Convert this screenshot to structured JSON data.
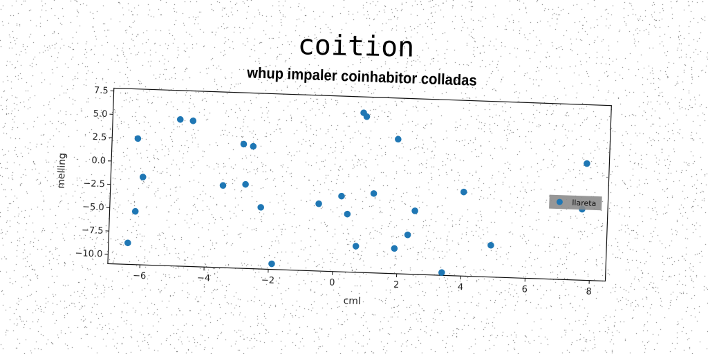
{
  "figure": {
    "suptitle": "coition"
  },
  "chart_data": {
    "type": "scatter",
    "title": "whup impaler coinhabitor colladas",
    "xlabel": "cml",
    "ylabel": "melling",
    "xlim": [
      -7,
      8.5
    ],
    "ylim": [
      -11,
      7.8
    ],
    "xticks": [
      -6,
      -4,
      -2,
      0,
      2,
      4,
      6,
      8
    ],
    "xtick_labels": [
      "−6",
      "−4",
      "−2",
      "0",
      "2",
      "4",
      "6",
      "8"
    ],
    "yticks": [
      -10,
      -7.5,
      -5,
      -2.5,
      0,
      2.5,
      5,
      7.5
    ],
    "ytick_labels": [
      "−10.0",
      "−7.5",
      "−5.0",
      "−2.5",
      "0.0",
      "2.5",
      "5.0",
      "7.5"
    ],
    "grid": false,
    "legend_position": "right",
    "colors": {
      "series": "#1f77b4",
      "legend_bg": "#8c8c8c"
    },
    "series": [
      {
        "name": "llareta",
        "x": [
          -6.2,
          -6.0,
          -6.2,
          -6.4,
          -4.9,
          -4.5,
          -3.5,
          -2.9,
          -2.8,
          -2.6,
          -2.3,
          -1.9,
          -0.5,
          0.2,
          0.4,
          0.7,
          0.8,
          0.9,
          1.2,
          1.9,
          1.9,
          2.3,
          2.5,
          3.4,
          4.0,
          4.9,
          7.7,
          7.8
        ],
        "y": [
          2.5,
          -1.6,
          -5.3,
          -8.7,
          4.7,
          4.6,
          -2.2,
          2.3,
          -2.0,
          2.1,
          -4.4,
          -10.4,
          -3.8,
          -2.9,
          -4.8,
          -8.2,
          6.1,
          5.7,
          -2.5,
          3.4,
          -8.3,
          -6.8,
          -4.2,
          -10.7,
          -2.0,
          -7.6,
          -3.4,
          1.5
        ]
      }
    ]
  }
}
